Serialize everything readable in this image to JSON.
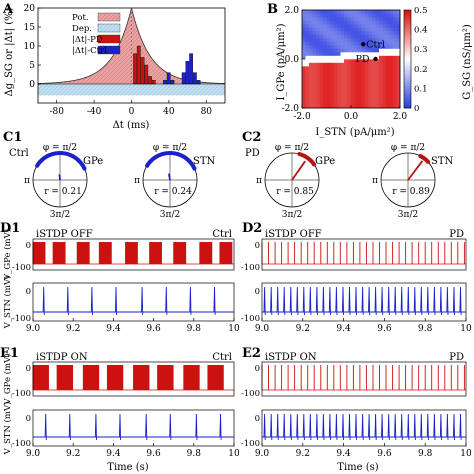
{
  "panels": {
    "A": {
      "label": "A"
    },
    "B": {
      "label": "B"
    },
    "C1": {
      "label": "C1",
      "group": "Ctrl"
    },
    "C2": {
      "label": "C2",
      "group": "PD"
    },
    "D1": {
      "label": "D1",
      "state": "iSTDP OFF",
      "group": "Ctrl"
    },
    "D2": {
      "label": "D2",
      "state": "iSTDP OFF",
      "group": "PD"
    },
    "E1": {
      "label": "E1",
      "state": "iSTDP ON",
      "group": "Ctrl"
    },
    "E2": {
      "label": "E2",
      "state": "iSTDP ON",
      "group": "PD"
    }
  },
  "chart_data": [
    {
      "id": "A",
      "type": "bar",
      "ylabel": "Δg_SG or |Δt| (%)",
      "xlabel": "Δt (ms)",
      "xlim": [
        -100,
        100
      ],
      "ylim": [
        -5,
        20
      ],
      "xticks": [
        "-80",
        "-40",
        "0",
        "40",
        "80"
      ],
      "yticks": [
        "0",
        "5",
        "10",
        "15",
        "20"
      ],
      "legend": [
        "Pot.",
        "Dep.",
        "|Δt|-PD",
        "|Δt|-Ctrl"
      ],
      "legend_position": "top-left",
      "series": [
        {
          "name": "Pot.",
          "color": "#e08a8a",
          "kind": "exp_curve",
          "peak": 20,
          "tau_ms": 20
        },
        {
          "name": "Dep.",
          "color": "#aed3ea",
          "kind": "band",
          "level": -3
        },
        {
          "name": "|Δt|-PD",
          "color": "#cc1111",
          "x": [
            2,
            6,
            10,
            14,
            18,
            22
          ],
          "values": [
            8,
            10,
            7,
            5,
            2,
            1
          ]
        },
        {
          "name": "|Δt|-Ctrl",
          "color": "#1a22c8",
          "x": [
            34,
            38,
            42,
            54,
            58,
            62,
            66,
            70
          ],
          "values": [
            1,
            3,
            1,
            3,
            6,
            8,
            3,
            1
          ]
        }
      ]
    },
    {
      "id": "B",
      "type": "heatmap",
      "xlabel": "I_STN (pA/μm²)",
      "ylabel": "I_GPe (pA/μm²)",
      "colorbar_label": "G_SG (nS/μm²)",
      "xlim": [
        -2.0,
        2.0
      ],
      "ylim": [
        -2.0,
        2.0
      ],
      "xticks": [
        "-2.0",
        "0.0",
        "2.0"
      ],
      "yticks": [
        "-2.0",
        "0.0",
        "2.0"
      ],
      "colorbar_ticks": [
        "0",
        "0.1",
        "0.2",
        "0.3",
        "0.4",
        "0.5"
      ],
      "colorbar_range": [
        0,
        0.5
      ],
      "points": [
        {
          "label": "Ctrl",
          "x": 0.5,
          "y": 0.6
        },
        {
          "label": "PD",
          "x": 1.0,
          "y": 0.0
        }
      ],
      "colors": {
        "low": "#2a3ce0",
        "mid": "#ffffff",
        "high": "#dd1111"
      }
    },
    {
      "id": "C",
      "type": "polar",
      "polar_tick_top": "φ = π/2",
      "polar_tick_left": "π",
      "polar_tick_bottom": "3π/2",
      "items": [
        {
          "panel": "C1",
          "name": "GPe",
          "r_text": "r = 0.21",
          "r": 0.21,
          "color": "#1a22c8",
          "arc_from_deg": 25,
          "arc_to_deg": 150,
          "mean_deg": 95
        },
        {
          "panel": "C1",
          "name": "STN",
          "r_text": "r = 0.24",
          "r": 0.24,
          "color": "#1a22c8",
          "arc_from_deg": 25,
          "arc_to_deg": 150,
          "mean_deg": 100
        },
        {
          "panel": "C2",
          "name": "GPe",
          "r_text": "r = 0.85",
          "r": 0.85,
          "color": "#b51414",
          "arc_from_deg": 35,
          "arc_to_deg": 75,
          "mean_deg": 55
        },
        {
          "panel": "C2",
          "name": "STN",
          "r_text": "r = 0.89",
          "r": 0.89,
          "color": "#b51414",
          "arc_from_deg": 42,
          "arc_to_deg": 65,
          "mean_deg": 53
        }
      ]
    },
    {
      "id": "traces",
      "type": "line",
      "xlabel": "Time (s)",
      "xlim": [
        9.0,
        10.0
      ],
      "xticks": [
        "9.0",
        "9.2",
        "9.4",
        "9.6",
        "9.8",
        "10"
      ],
      "gpe_ylabel": "V_GPe (mV)",
      "stn_ylabel": "V_STN (mV)",
      "yticks": [
        "-100",
        "0"
      ],
      "gpe_color": "#cc1111",
      "stn_color": "#1a22c8",
      "rows": [
        {
          "panel": "D1",
          "gpe_mode": "bursts",
          "burst_starts": [
            9.0,
            9.1,
            9.22,
            9.33,
            9.46,
            9.58,
            9.7,
            9.83,
            9.93
          ],
          "burst_width": 0.06,
          "stn_spikes": [
            9.05,
            9.17,
            9.29,
            9.41,
            9.54,
            9.66,
            9.78,
            9.9
          ]
        },
        {
          "panel": "D2",
          "gpe_mode": "regular",
          "period": 0.032,
          "stn_spikes_period": 0.032
        },
        {
          "panel": "E1",
          "gpe_mode": "bursts",
          "burst_starts": [
            9.0,
            9.12,
            9.25,
            9.37,
            9.5,
            9.62,
            9.75,
            9.87
          ],
          "burst_width": 0.08,
          "stn_spikes": [
            9.06,
            9.18,
            9.31,
            9.43,
            9.56,
            9.68,
            9.81,
            9.93
          ]
        },
        {
          "panel": "E2",
          "gpe_mode": "regular",
          "period": 0.032,
          "stn_spikes_period": 0.032
        }
      ]
    }
  ]
}
